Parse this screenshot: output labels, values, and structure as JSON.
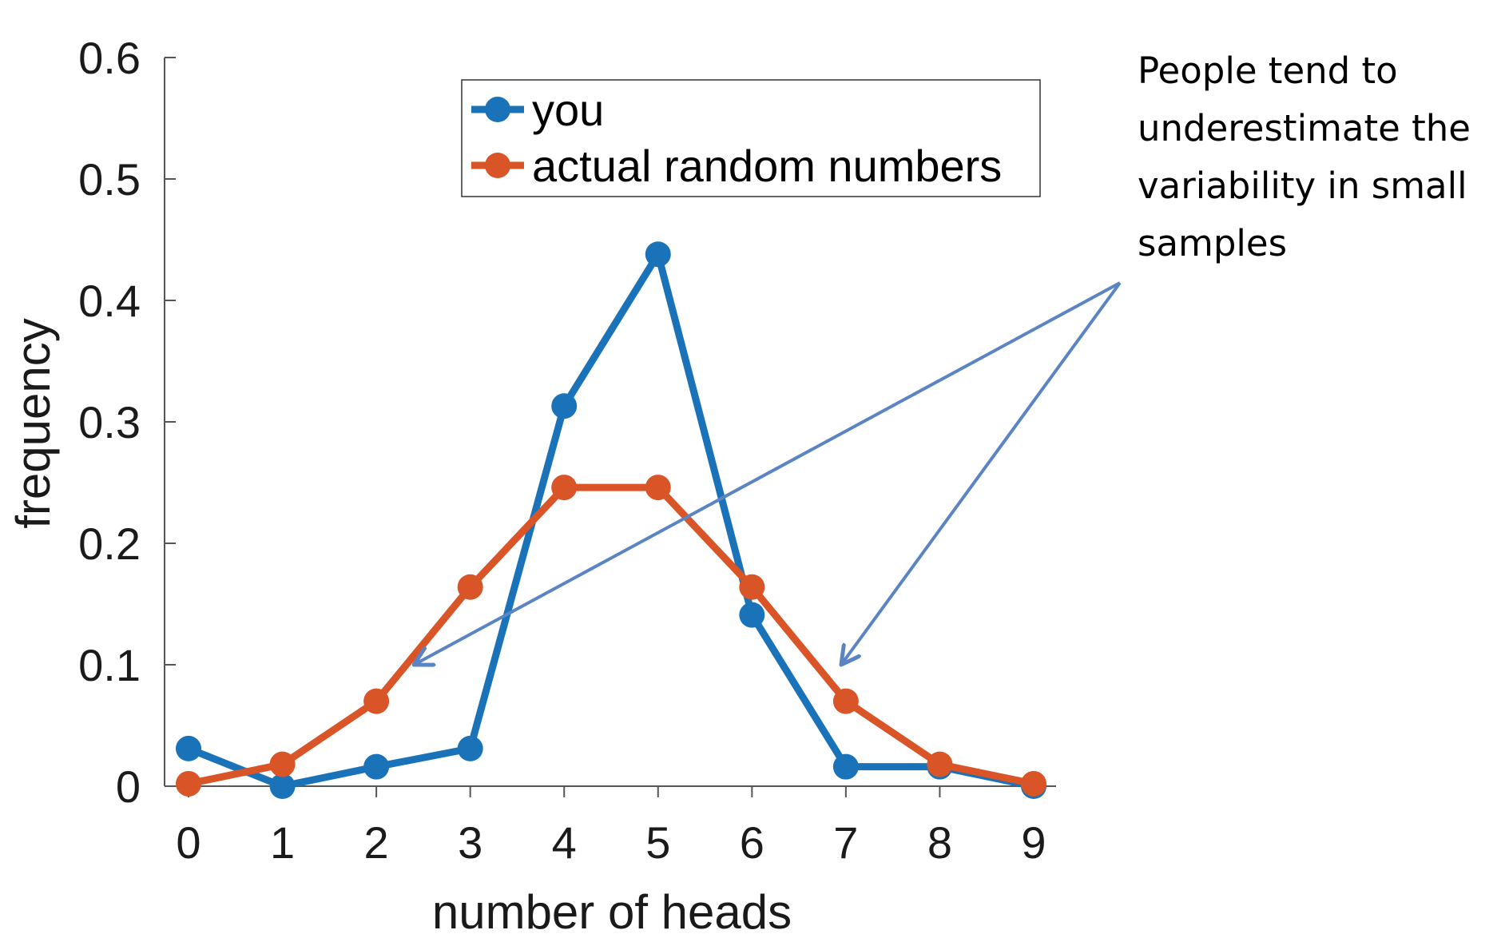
{
  "chart_data": {
    "type": "line",
    "title": "",
    "xlabel": "number of heads",
    "ylabel": "frequency",
    "x": [
      0,
      1,
      2,
      3,
      4,
      5,
      6,
      7,
      8,
      9
    ],
    "x_tick_labels": [
      "0",
      "1",
      "2",
      "3",
      "4",
      "5",
      "6",
      "7",
      "8",
      "9"
    ],
    "y_tick_labels": [
      "0",
      "0.1",
      "0.2",
      "0.3",
      "0.4",
      "0.5",
      "0.6"
    ],
    "y_ticks": [
      0,
      0.1,
      0.2,
      0.3,
      0.4,
      0.5,
      0.6
    ],
    "xlim": [
      0,
      9
    ],
    "ylim": [
      0,
      0.6
    ],
    "grid": false,
    "legend_position": "top",
    "series": [
      {
        "name": "you",
        "color": "#1a72b8",
        "values": [
          0.031,
          0.0,
          0.016,
          0.031,
          0.313,
          0.438,
          0.141,
          0.016,
          0.016,
          0.0
        ]
      },
      {
        "name": "actual random numbers",
        "color": "#d95427",
        "values": [
          0.002,
          0.018,
          0.07,
          0.164,
          0.246,
          0.246,
          0.164,
          0.07,
          0.018,
          0.002
        ]
      }
    ],
    "annotation": {
      "lines": [
        "People tend to",
        "underestimate the",
        "variability in small",
        "samples"
      ],
      "arrow_color": "#5b84c4",
      "arrows_point_to": [
        {
          "x": 2.4,
          "y": 0.1
        },
        {
          "x": 6.95,
          "y": 0.1
        }
      ]
    }
  }
}
